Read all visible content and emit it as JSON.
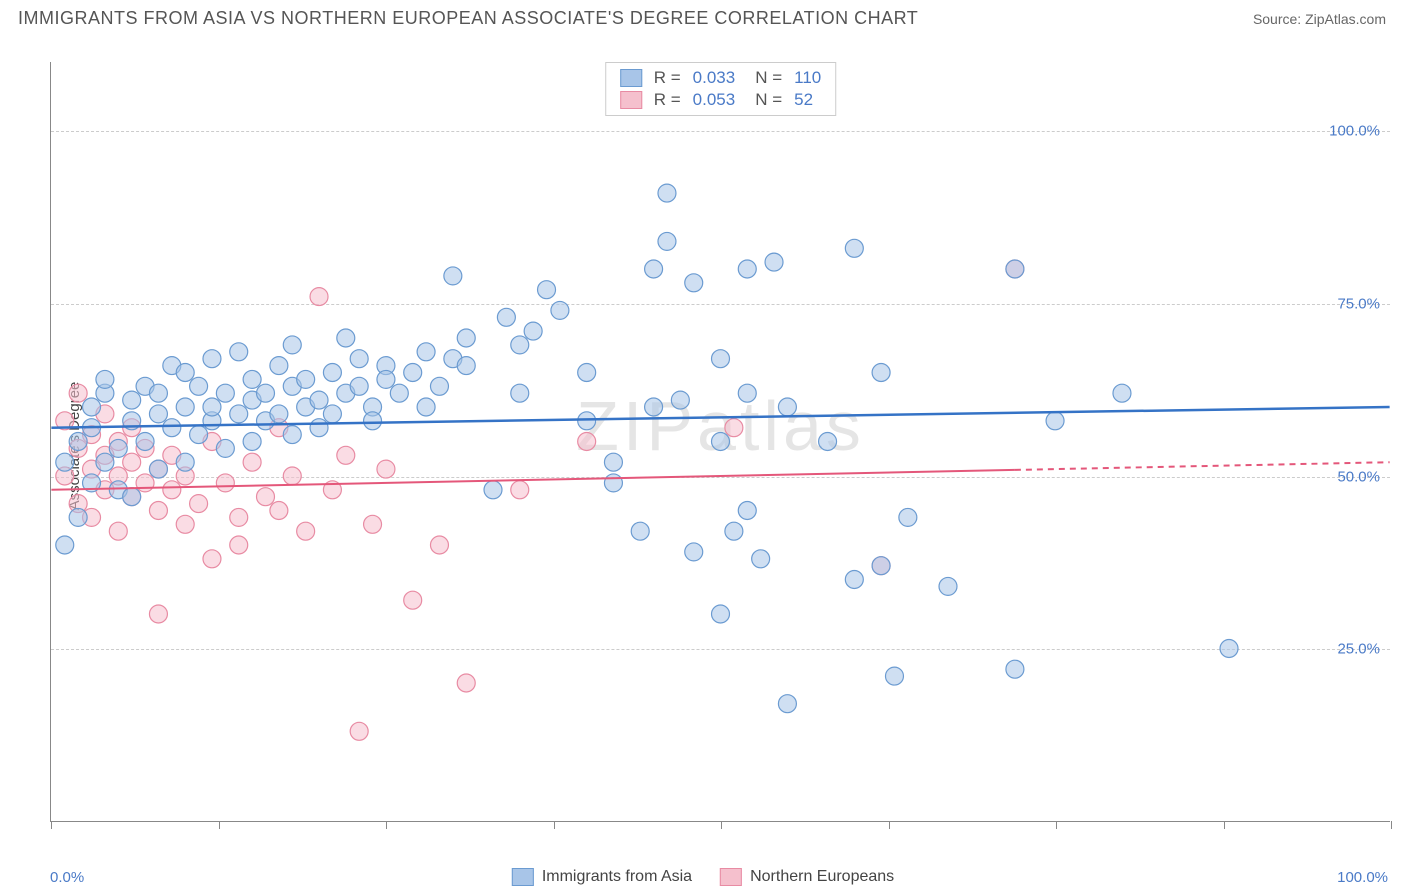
{
  "header": {
    "title": "IMMIGRANTS FROM ASIA VS NORTHERN EUROPEAN ASSOCIATE'S DEGREE CORRELATION CHART",
    "source": "Source: ZipAtlas.com"
  },
  "chart": {
    "type": "scatter",
    "ylabel": "Associate's Degree",
    "watermark": "ZIPatlas",
    "background_color": "#ffffff",
    "grid_color": "#cccccc",
    "axis_color": "#888888",
    "tick_label_color": "#4a7ac7",
    "xlim": [
      0,
      100
    ],
    "ylim": [
      0,
      110
    ],
    "y_gridlines": [
      25,
      50,
      75,
      100
    ],
    "y_tick_labels": [
      "25.0%",
      "50.0%",
      "75.0%",
      "100.0%"
    ],
    "x_ticks": [
      0,
      12.5,
      25,
      37.5,
      50,
      62.5,
      75,
      87.5,
      100
    ],
    "x_tick_labels": {
      "start": "0.0%",
      "end": "100.0%"
    },
    "series_a": {
      "name": "Immigrants from Asia",
      "fill": "#a8c5e8",
      "stroke": "#6b9bd1",
      "fill_opacity": 0.55,
      "marker_r": 9,
      "R": "0.033",
      "N": "110",
      "trend": {
        "y_at_x0": 57,
        "y_at_x100": 60,
        "color": "#3573c6",
        "width": 2.5
      },
      "points": [
        [
          1,
          52
        ],
        [
          1,
          40
        ],
        [
          2,
          44
        ],
        [
          2,
          55
        ],
        [
          3,
          57
        ],
        [
          3,
          49
        ],
        [
          3,
          60
        ],
        [
          4,
          62
        ],
        [
          4,
          52
        ],
        [
          4,
          64
        ],
        [
          5,
          54
        ],
        [
          5,
          48
        ],
        [
          6,
          58
        ],
        [
          6,
          61
        ],
        [
          6,
          47
        ],
        [
          7,
          63
        ],
        [
          7,
          55
        ],
        [
          8,
          59
        ],
        [
          8,
          62
        ],
        [
          8,
          51
        ],
        [
          9,
          66
        ],
        [
          9,
          57
        ],
        [
          10,
          60
        ],
        [
          10,
          52
        ],
        [
          10,
          65
        ],
        [
          11,
          63
        ],
        [
          11,
          56
        ],
        [
          12,
          58
        ],
        [
          12,
          67
        ],
        [
          12,
          60
        ],
        [
          13,
          62
        ],
        [
          13,
          54
        ],
        [
          14,
          59
        ],
        [
          14,
          68
        ],
        [
          15,
          61
        ],
        [
          15,
          55
        ],
        [
          15,
          64
        ],
        [
          16,
          62
        ],
        [
          16,
          58
        ],
        [
          17,
          66
        ],
        [
          17,
          59
        ],
        [
          18,
          63
        ],
        [
          18,
          56
        ],
        [
          18,
          69
        ],
        [
          19,
          60
        ],
        [
          19,
          64
        ],
        [
          20,
          61
        ],
        [
          20,
          57
        ],
        [
          21,
          65
        ],
        [
          21,
          59
        ],
        [
          22,
          62
        ],
        [
          22,
          70
        ],
        [
          23,
          63
        ],
        [
          23,
          67
        ],
        [
          24,
          60
        ],
        [
          24,
          58
        ],
        [
          25,
          66
        ],
        [
          25,
          64
        ],
        [
          26,
          62
        ],
        [
          27,
          65
        ],
        [
          28,
          68
        ],
        [
          28,
          60
        ],
        [
          29,
          63
        ],
        [
          30,
          67
        ],
        [
          30,
          79
        ],
        [
          31,
          70
        ],
        [
          31,
          66
        ],
        [
          33,
          48
        ],
        [
          34,
          73
        ],
        [
          35,
          62
        ],
        [
          35,
          69
        ],
        [
          36,
          71
        ],
        [
          37,
          77
        ],
        [
          38,
          74
        ],
        [
          40,
          65
        ],
        [
          40,
          58
        ],
        [
          42,
          52
        ],
        [
          42,
          49
        ],
        [
          44,
          42
        ],
        [
          45,
          60
        ],
        [
          45,
          80
        ],
        [
          46,
          84
        ],
        [
          46,
          91
        ],
        [
          47,
          61
        ],
        [
          48,
          39
        ],
        [
          48,
          78
        ],
        [
          50,
          67
        ],
        [
          50,
          55
        ],
        [
          50,
          30
        ],
        [
          51,
          42
        ],
        [
          52,
          45
        ],
        [
          52,
          62
        ],
        [
          52,
          80
        ],
        [
          53,
          38
        ],
        [
          54,
          81
        ],
        [
          55,
          17
        ],
        [
          55,
          60
        ],
        [
          58,
          55
        ],
        [
          60,
          83
        ],
        [
          60,
          35
        ],
        [
          62,
          65
        ],
        [
          62,
          37
        ],
        [
          63,
          21
        ],
        [
          64,
          44
        ],
        [
          67,
          34
        ],
        [
          72,
          80
        ],
        [
          72,
          22
        ],
        [
          75,
          58
        ],
        [
          80,
          62
        ],
        [
          88,
          25
        ]
      ]
    },
    "series_b": {
      "name": "Northern Europeans",
      "fill": "#f5c0cd",
      "stroke": "#e88ba3",
      "fill_opacity": 0.55,
      "marker_r": 9,
      "R": "0.053",
      "N": "52",
      "trend": {
        "y_at_x0": 48,
        "y_at_x100": 52,
        "color": "#e4577a",
        "width": 2,
        "solid_until_x": 72
      },
      "points": [
        [
          1,
          58
        ],
        [
          1,
          50
        ],
        [
          2,
          54
        ],
        [
          2,
          46
        ],
        [
          2,
          62
        ],
        [
          3,
          51
        ],
        [
          3,
          56
        ],
        [
          3,
          44
        ],
        [
          4,
          53
        ],
        [
          4,
          48
        ],
        [
          4,
          59
        ],
        [
          5,
          50
        ],
        [
          5,
          55
        ],
        [
          5,
          42
        ],
        [
          6,
          52
        ],
        [
          6,
          47
        ],
        [
          6,
          57
        ],
        [
          7,
          49
        ],
        [
          7,
          54
        ],
        [
          8,
          51
        ],
        [
          8,
          45
        ],
        [
          8,
          30
        ],
        [
          9,
          53
        ],
        [
          9,
          48
        ],
        [
          10,
          50
        ],
        [
          10,
          43
        ],
        [
          11,
          46
        ],
        [
          12,
          55
        ],
        [
          12,
          38
        ],
        [
          13,
          49
        ],
        [
          14,
          44
        ],
        [
          14,
          40
        ],
        [
          15,
          52
        ],
        [
          16,
          47
        ],
        [
          17,
          45
        ],
        [
          17,
          57
        ],
        [
          18,
          50
        ],
        [
          19,
          42
        ],
        [
          20,
          76
        ],
        [
          21,
          48
        ],
        [
          22,
          53
        ],
        [
          23,
          13
        ],
        [
          24,
          43
        ],
        [
          25,
          51
        ],
        [
          27,
          32
        ],
        [
          29,
          40
        ],
        [
          31,
          20
        ],
        [
          35,
          48
        ],
        [
          40,
          55
        ],
        [
          51,
          57
        ],
        [
          62,
          37
        ],
        [
          72,
          80
        ]
      ]
    }
  },
  "top_legend": {
    "rows": [
      {
        "swatch_fill": "#a8c5e8",
        "swatch_stroke": "#6b9bd1",
        "r_label": "R =",
        "r_val": "0.033",
        "n_label": "N =",
        "n_val": "110"
      },
      {
        "swatch_fill": "#f5c0cd",
        "swatch_stroke": "#e88ba3",
        "r_label": "R =",
        "r_val": "0.053",
        "n_label": "N =",
        "n_val": " 52"
      }
    ]
  },
  "bottom_legend": {
    "items": [
      {
        "swatch_fill": "#a8c5e8",
        "swatch_stroke": "#6b9bd1",
        "label": "Immigrants from Asia"
      },
      {
        "swatch_fill": "#f5c0cd",
        "swatch_stroke": "#e88ba3",
        "label": "Northern Europeans"
      }
    ]
  }
}
